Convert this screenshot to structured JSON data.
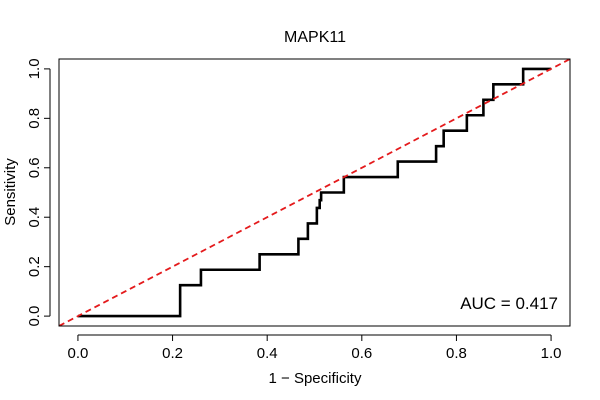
{
  "chart_data": {
    "type": "line",
    "title": "MAPK11",
    "xlabel": "1 − Specificity",
    "ylabel": "Sensitivity",
    "xlim": [
      -0.04,
      1.04
    ],
    "ylim": [
      -0.04,
      1.04
    ],
    "xticks": [
      0.0,
      0.2,
      0.4,
      0.6,
      0.8,
      1.0
    ],
    "xtick_labels": [
      "0.0",
      "0.2",
      "0.4",
      "0.6",
      "0.8",
      "1.0"
    ],
    "yticks": [
      0.0,
      0.2,
      0.4,
      0.6,
      0.8,
      1.0
    ],
    "ytick_labels": [
      "0.0",
      "0.2",
      "0.4",
      "0.6",
      "0.8",
      "1.0"
    ],
    "grid": false,
    "annotation": "AUC = 0.417",
    "series": [
      {
        "name": "ROC curve",
        "color": "#000000",
        "style": "solid",
        "x": [
          0,
          0.216,
          0.216,
          0.26,
          0.26,
          0.384,
          0.384,
          0.466,
          0.466,
          0.486,
          0.486,
          0.505,
          0.505,
          0.511,
          0.511,
          0.514,
          0.514,
          0.562,
          0.562,
          0.676,
          0.676,
          0.757,
          0.757,
          0.773,
          0.773,
          0.822,
          0.822,
          0.857,
          0.857,
          0.878,
          0.878,
          0.941,
          0.941,
          1.0
        ],
        "y": [
          0,
          0,
          0.125,
          0.125,
          0.1875,
          0.1875,
          0.25,
          0.25,
          0.3125,
          0.3125,
          0.375,
          0.375,
          0.4375,
          0.4375,
          0.46875,
          0.46875,
          0.5,
          0.5,
          0.5625,
          0.5625,
          0.625,
          0.625,
          0.6875,
          0.6875,
          0.75,
          0.75,
          0.8125,
          0.8125,
          0.875,
          0.875,
          0.9375,
          0.9375,
          1.0,
          1.0
        ]
      },
      {
        "name": "Reference diagonal",
        "color": "#e41a1c",
        "style": "dashed",
        "x": [
          -0.04,
          1.04
        ],
        "y": [
          -0.04,
          1.04
        ]
      }
    ]
  }
}
